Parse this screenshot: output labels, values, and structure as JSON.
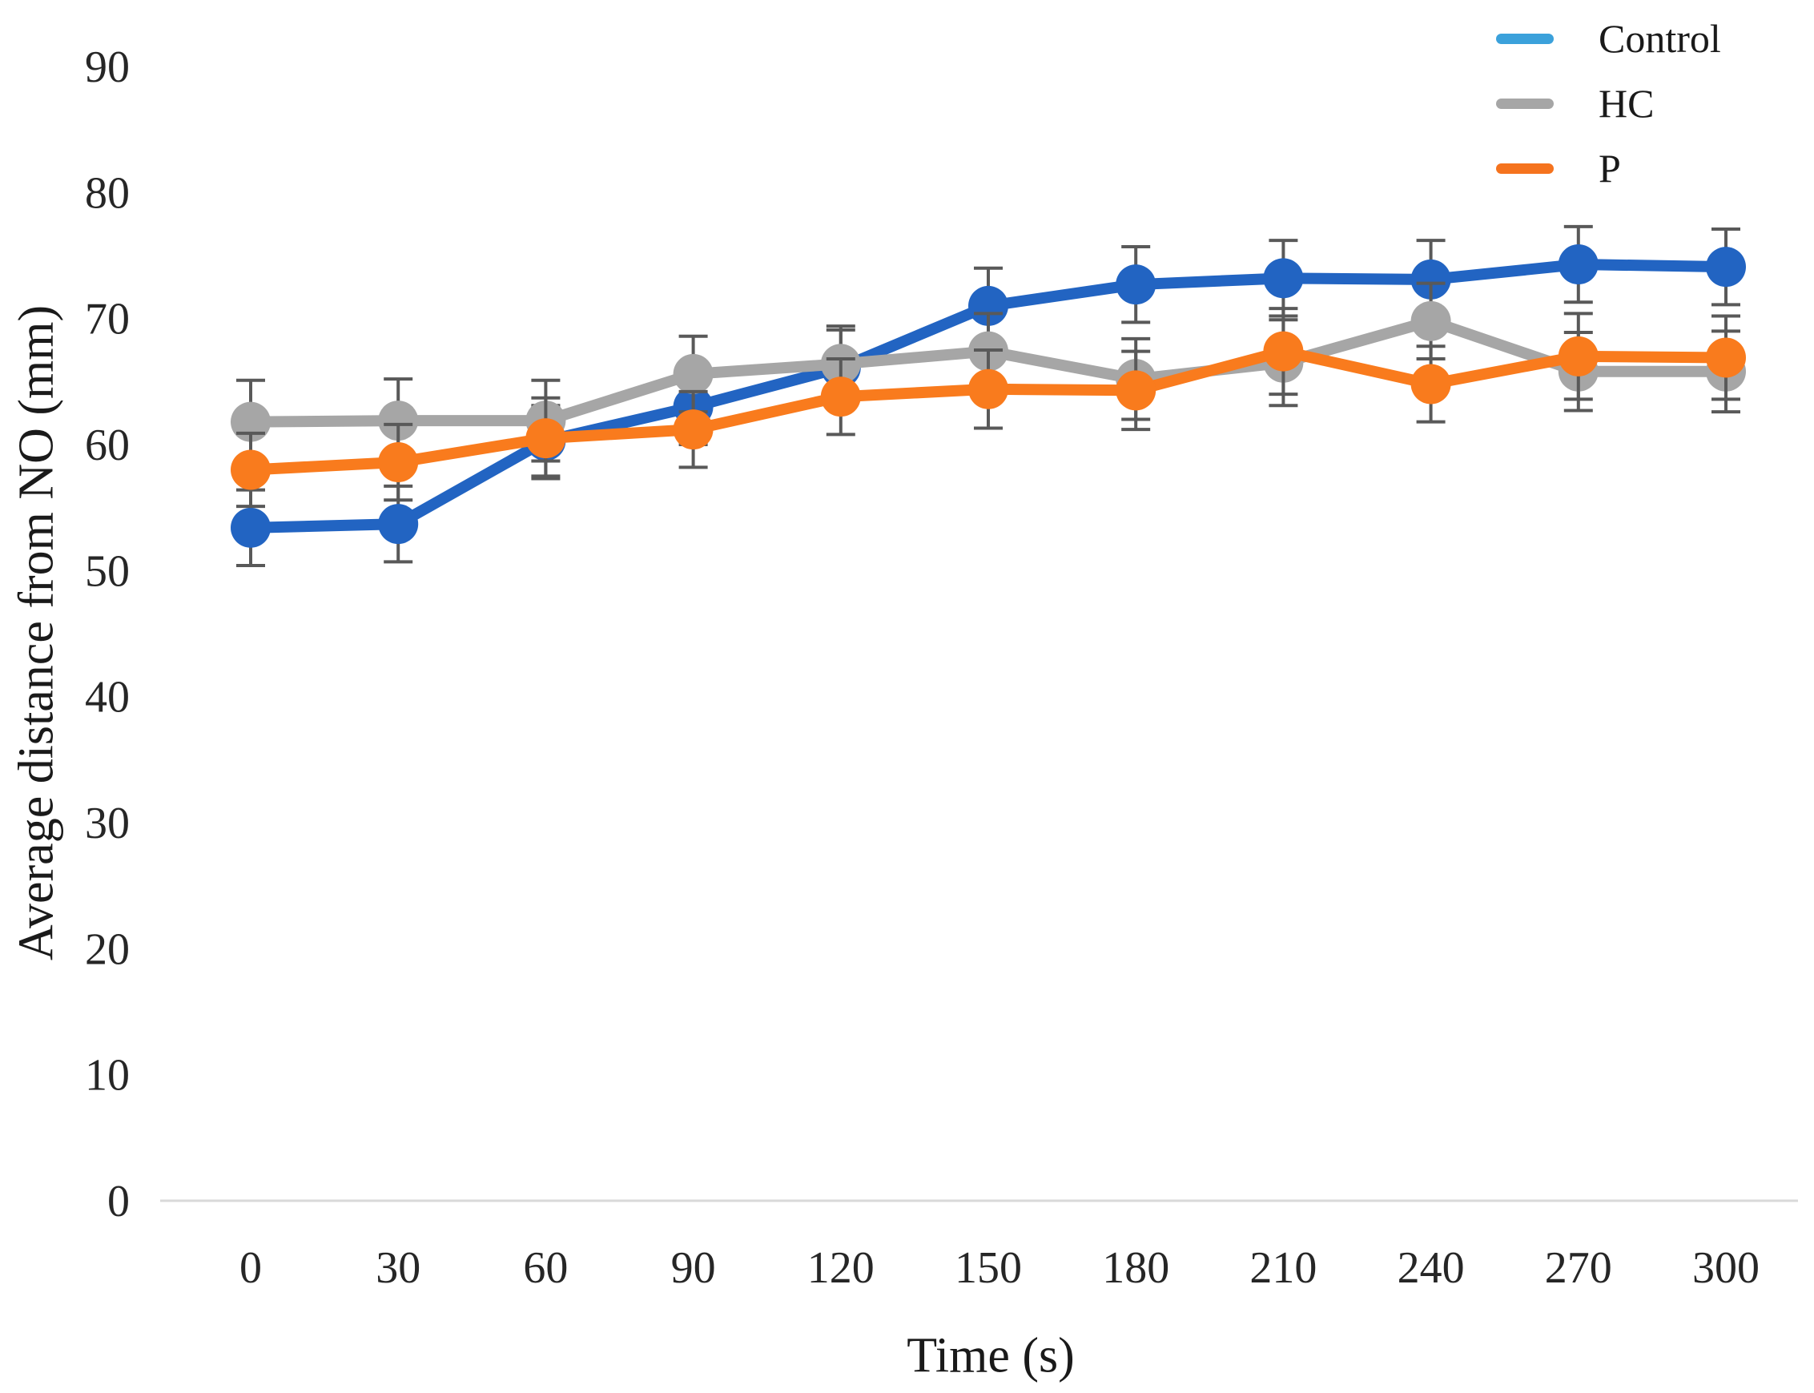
{
  "figure": {
    "y_axis_title": "Average distance from NO (mm)",
    "x_axis_title": "Time (s)"
  },
  "chart_data": {
    "type": "line",
    "title": "",
    "xlabel": "Time (s)",
    "ylabel": "Average distance from NO (mm)",
    "x": [
      0,
      30,
      60,
      90,
      120,
      150,
      180,
      210,
      240,
      270,
      300
    ],
    "x_ticks": [
      0,
      30,
      60,
      90,
      120,
      150,
      180,
      210,
      240,
      270,
      300
    ],
    "y_ticks": [
      0,
      10,
      20,
      30,
      40,
      50,
      60,
      70,
      80,
      90
    ],
    "ylim": [
      0,
      90
    ],
    "xlim": [
      0,
      300
    ],
    "grid": false,
    "legend_position": "top-right",
    "error_bars": true,
    "series": [
      {
        "name": "Control",
        "color_line": "#2264C2",
        "color_legend": "#3BA1DB",
        "values": [
          53.4,
          53.7,
          60.3,
          63.0,
          66.1,
          71.0,
          72.7,
          73.2,
          73.1,
          74.3,
          74.1
        ],
        "errors": [
          3.0,
          3.0,
          2.8,
          3.0,
          3.0,
          3.0,
          3.0,
          3.0,
          3.1,
          3.0,
          3.0
        ]
      },
      {
        "name": "HC",
        "color_line": "#A6A6A6",
        "color_legend": "#A6A6A6",
        "values": [
          61.8,
          61.9,
          61.9,
          65.6,
          66.4,
          67.4,
          65.2,
          66.5,
          69.8,
          65.8,
          65.8
        ],
        "errors": [
          3.3,
          3.3,
          3.2,
          3.0,
          3.0,
          3.0,
          3.2,
          3.4,
          3.0,
          3.1,
          3.2
        ]
      },
      {
        "name": "P",
        "color_line": "#F97B1D",
        "color_legend": "#F5731E",
        "values": [
          58.0,
          58.6,
          60.5,
          61.2,
          63.8,
          64.4,
          64.3,
          67.4,
          64.8,
          67.0,
          66.9
        ],
        "errors": [
          2.9,
          3.0,
          3.2,
          3.0,
          3.0,
          3.1,
          3.1,
          3.4,
          3.0,
          3.4,
          3.3
        ]
      }
    ],
    "error_bar_color": "#595959",
    "axis_line_color": "#D9D9D9",
    "text_color": "#262626"
  }
}
